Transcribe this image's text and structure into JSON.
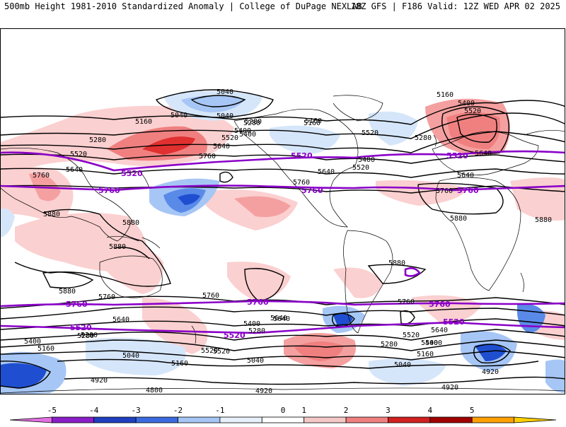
{
  "header": {
    "left": "500mb Height 1981-2010 Standardized Anomaly | College of DuPage NEXLAB",
    "right": "18Z GFS | F186 Valid: 12Z WED APR 02 2025"
  },
  "map": {
    "contour_labels_black": [
      "5040",
      "5040",
      "5160",
      "5280",
      "5400",
      "5520",
      "5640",
      "5280",
      "5520",
      "5640",
      "5760",
      "5640",
      "5760",
      "5880",
      "5880",
      "5880",
      "5880",
      "5160",
      "5280",
      "5400",
      "5520",
      "5640",
      "5760",
      "5880",
      "5400",
      "5520",
      "5640",
      "5880",
      "5880",
      "5760",
      "5760",
      "5640",
      "5400",
      "5280",
      "5400",
      "5160",
      "5520",
      "5640",
      "5400",
      "5280",
      "5160",
      "5040",
      "5040",
      "5160",
      "5280",
      "5040",
      "4920",
      "4800",
      "4920",
      "4920",
      "5040",
      "5160",
      "5520",
      "5640",
      "5760",
      "5520",
      "5400",
      "5160",
      "5280",
      "4920",
      "5760",
      "5640",
      "5520",
      "5400",
      "5280"
    ],
    "contour_labels_purple": [
      "5520",
      "5760",
      "5520",
      "5760",
      "5520",
      "5760",
      "5760",
      "5520",
      "5760",
      "5760",
      "5520",
      "5520"
    ],
    "colors": {
      "pos1": "#fbd0d0",
      "pos2": "#f5a0a0",
      "pos3": "#f07070",
      "pos4": "#e03030",
      "pos5": "#c00000",
      "neg1": "#d6e6fa",
      "neg2": "#a6c6f5",
      "neg3": "#5a8ae8",
      "neg4": "#1f4fd0",
      "clim_contour": "#8a00c8"
    }
  },
  "colorbar": {
    "ticks": [
      "-5",
      "-4",
      "-3",
      "-2",
      "-1",
      "0",
      "1",
      "2",
      "3",
      "4",
      "5"
    ],
    "colors": [
      "#e070e0",
      "#8a1ec8",
      "#1f3fc0",
      "#3a6ae0",
      "#a6c6f5",
      "#e8f0fb",
      "#ffffff",
      "#f5c8c8",
      "#f08080",
      "#d02020",
      "#a00000",
      "#ffa000",
      "#ffd000"
    ]
  }
}
